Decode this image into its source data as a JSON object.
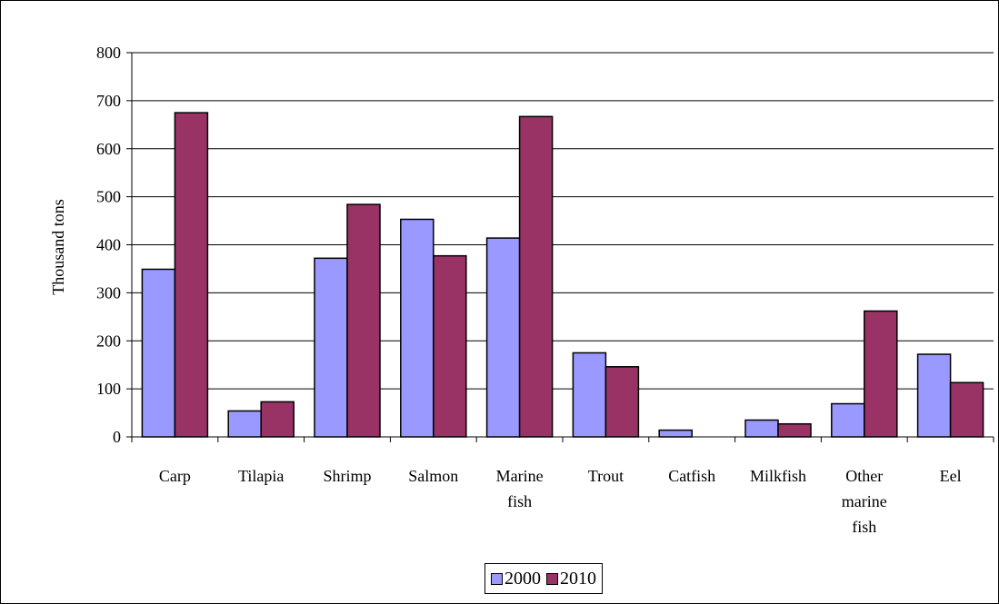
{
  "chart_data": {
    "type": "bar",
    "title": "",
    "xlabel": "",
    "ylabel": "Thousand tons",
    "ylim": [
      0,
      800
    ],
    "yticks": [
      0,
      100,
      200,
      300,
      400,
      500,
      600,
      700,
      800
    ],
    "grid": true,
    "legend_position": "bottom",
    "categories": [
      [
        "Carp"
      ],
      [
        "Tilapia"
      ],
      [
        "Shrimp"
      ],
      [
        "Salmon"
      ],
      [
        "Marine",
        "fish"
      ],
      [
        "Trout"
      ],
      [
        "Catfish"
      ],
      [
        "Milkfish"
      ],
      [
        "Other",
        "marine",
        "fish"
      ],
      [
        "Eel"
      ]
    ],
    "series": [
      {
        "name": "2000",
        "color": "#9999ff",
        "values": [
          349,
          54,
          372,
          453,
          414,
          175,
          14,
          35,
          69,
          172
        ]
      },
      {
        "name": "2010",
        "color": "#993366",
        "values": [
          675,
          73,
          484,
          377,
          667,
          146,
          0,
          27,
          262,
          113
        ]
      }
    ]
  }
}
